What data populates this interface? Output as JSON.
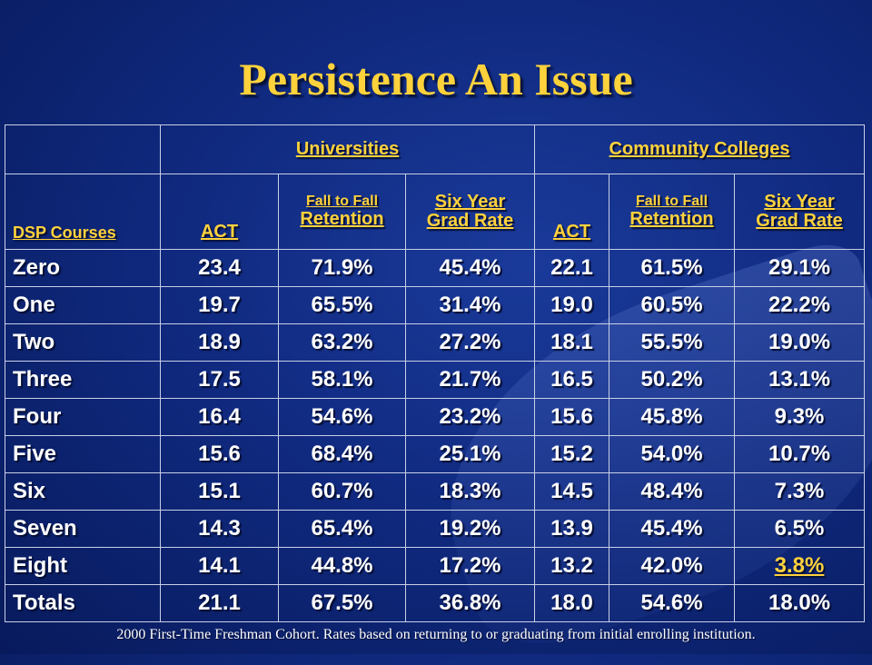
{
  "title": "Persistence An Issue",
  "groups": {
    "universities": "Universities",
    "community_colleges": "Community Colleges"
  },
  "columns": {
    "dsp": "DSP Courses",
    "act": "ACT",
    "retention_top": "Fall to Fall",
    "retention_bottom": "Retention",
    "grad_top": "Six Year",
    "grad_bottom": "Grad Rate"
  },
  "rows": [
    [
      "Zero",
      "23.4",
      "71.9%",
      "45.4%",
      "22.1",
      "61.5%",
      "29.1%"
    ],
    [
      "One",
      "19.7",
      "65.5%",
      "31.4%",
      "19.0",
      "60.5%",
      "22.2%"
    ],
    [
      "Two",
      "18.9",
      "63.2%",
      "27.2%",
      "18.1",
      "55.5%",
      "19.0%"
    ],
    [
      "Three",
      "17.5",
      "58.1%",
      "21.7%",
      "16.5",
      "50.2%",
      "13.1%"
    ],
    [
      "Four",
      "16.4",
      "54.6%",
      "23.2%",
      "15.6",
      "45.8%",
      "9.3%"
    ],
    [
      "Five",
      "15.6",
      "68.4%",
      "25.1%",
      "15.2",
      "54.0%",
      "10.7%"
    ],
    [
      "Six",
      "15.1",
      "60.7%",
      "18.3%",
      "14.5",
      "48.4%",
      "7.3%"
    ],
    [
      "Seven",
      "14.3",
      "65.4%",
      "19.2%",
      "13.9",
      "45.4%",
      "6.5%"
    ],
    [
      "Eight",
      "14.1",
      "44.8%",
      "17.2%",
      "13.2",
      "42.0%",
      "3.8%"
    ],
    [
      "Totals",
      "21.1",
      "67.5%",
      "36.8%",
      "18.0",
      "54.6%",
      "18.0%"
    ]
  ],
  "footnote": "2000 First-Time Freshman Cohort.  Rates based on returning to or graduating from initial enrolling  institution.",
  "colors": {
    "background": "#102a80",
    "accent": "#ffd23c",
    "text": "#ffffff"
  }
}
